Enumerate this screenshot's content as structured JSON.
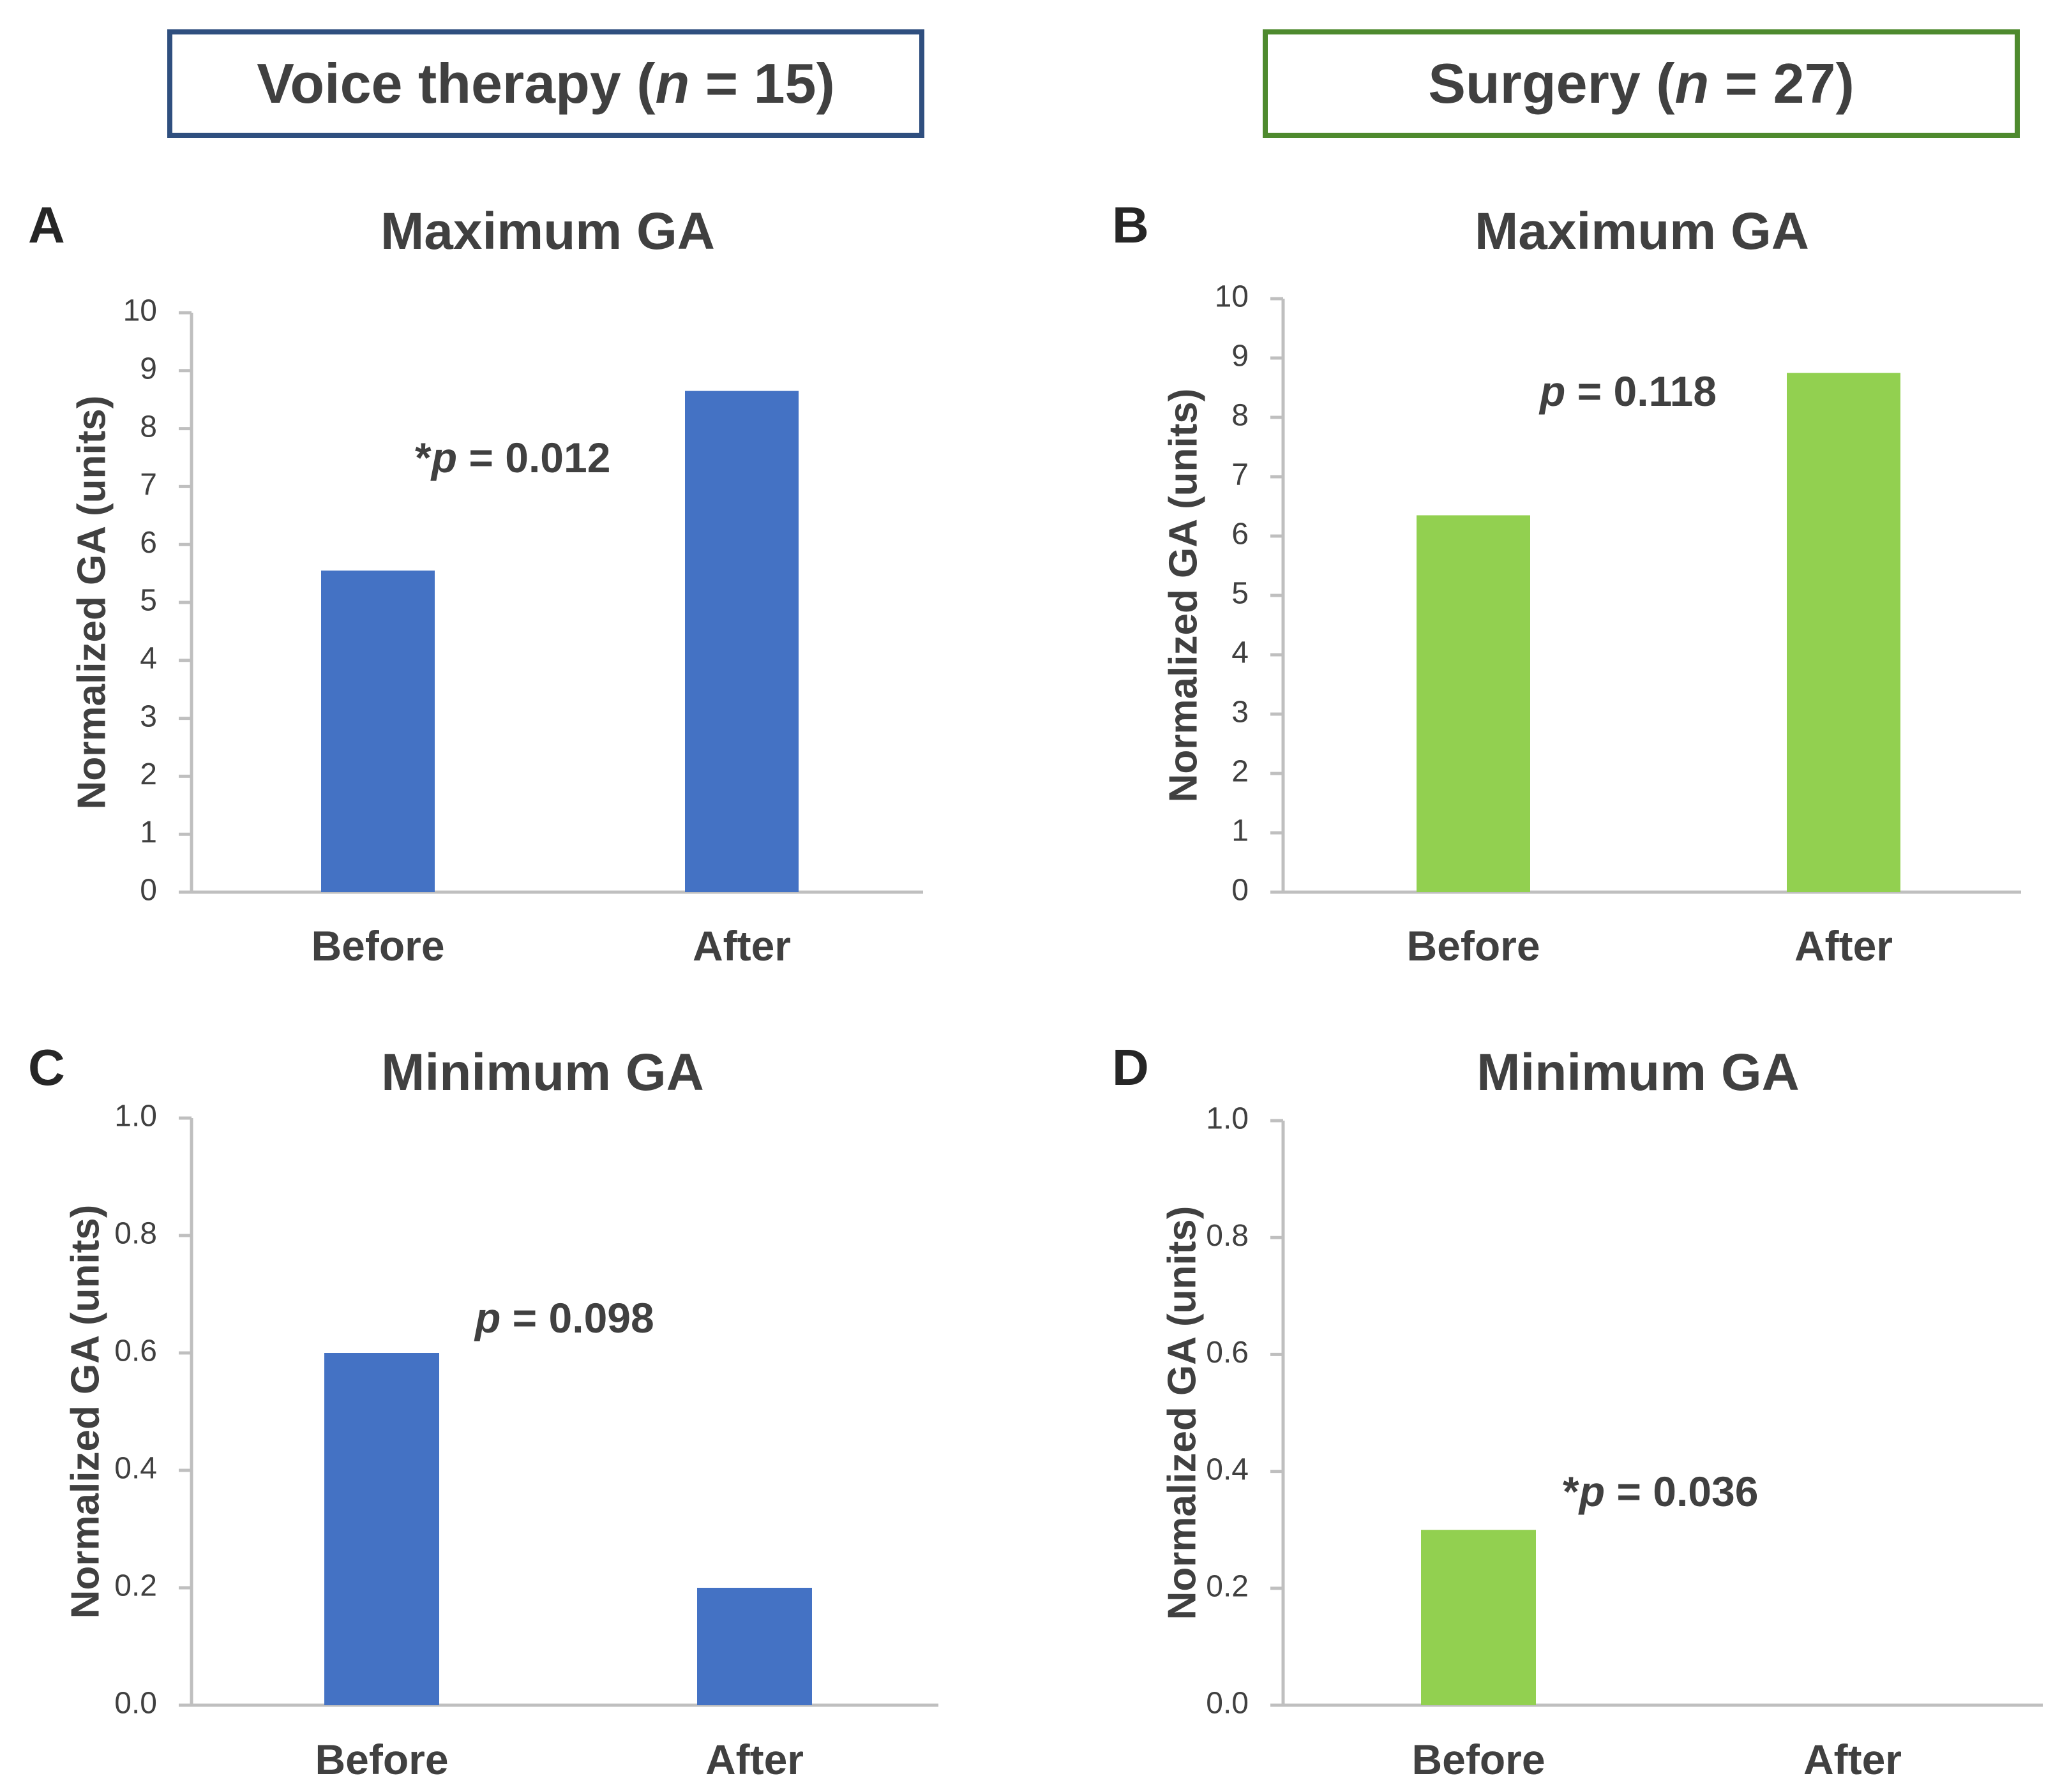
{
  "groups": [
    {
      "label_prefix": "Voice therapy (",
      "n_symbol": "n",
      "label_suffix": " = 15)",
      "color": "#2F4F7F"
    },
    {
      "label_prefix": "Surgery (",
      "n_symbol": "n",
      "label_suffix": " = 27)",
      "color": "#4E8A2E"
    }
  ],
  "chart_data": [
    {
      "panel": "A",
      "type": "bar",
      "title": "Maximum GA",
      "ylabel": "Normalized GA (units)",
      "ylim": [
        0,
        10
      ],
      "yticks": [
        "0",
        "1",
        "2",
        "3",
        "4",
        "5",
        "6",
        "7",
        "8",
        "9",
        "10"
      ],
      "categories": [
        "Before",
        "After"
      ],
      "values": [
        5.55,
        8.65
      ],
      "color": "#4472C4",
      "annotation": {
        "star": "*",
        "p": "p",
        "text": " = 0.012"
      }
    },
    {
      "panel": "B",
      "type": "bar",
      "title": "Maximum GA",
      "ylabel": "Normalized GA (units)",
      "ylim": [
        0,
        10
      ],
      "yticks": [
        "0",
        "1",
        "2",
        "3",
        "4",
        "5",
        "6",
        "7",
        "8",
        "9",
        "10"
      ],
      "categories": [
        "Before",
        "After"
      ],
      "values": [
        6.35,
        8.75
      ],
      "color": "#92D050",
      "annotation": {
        "star": "",
        "p": "p",
        "text": " = 0.118"
      }
    },
    {
      "panel": "C",
      "type": "bar",
      "title": "Minimum GA",
      "ylabel": "Normalized GA (units)",
      "ylim": [
        0,
        1
      ],
      "yticks": [
        "0.0",
        "0.2",
        "0.4",
        "0.6",
        "0.8",
        "1.0"
      ],
      "categories": [
        "Before",
        "After"
      ],
      "values": [
        0.6,
        0.2
      ],
      "color": "#4472C4",
      "annotation": {
        "star": "",
        "p": "p",
        "text": " = 0.098"
      }
    },
    {
      "panel": "D",
      "type": "bar",
      "title": "Minimum GA",
      "ylabel": "Normalized GA (units)",
      "ylim": [
        0,
        1
      ],
      "yticks": [
        "0.0",
        "0.2",
        "0.4",
        "0.6",
        "0.8",
        "1.0"
      ],
      "categories": [
        "Before",
        "After"
      ],
      "values": [
        0.3,
        0.0
      ],
      "color": "#92D050",
      "annotation": {
        "star": "*",
        "p": "p",
        "text": " = 0.036"
      }
    }
  ]
}
